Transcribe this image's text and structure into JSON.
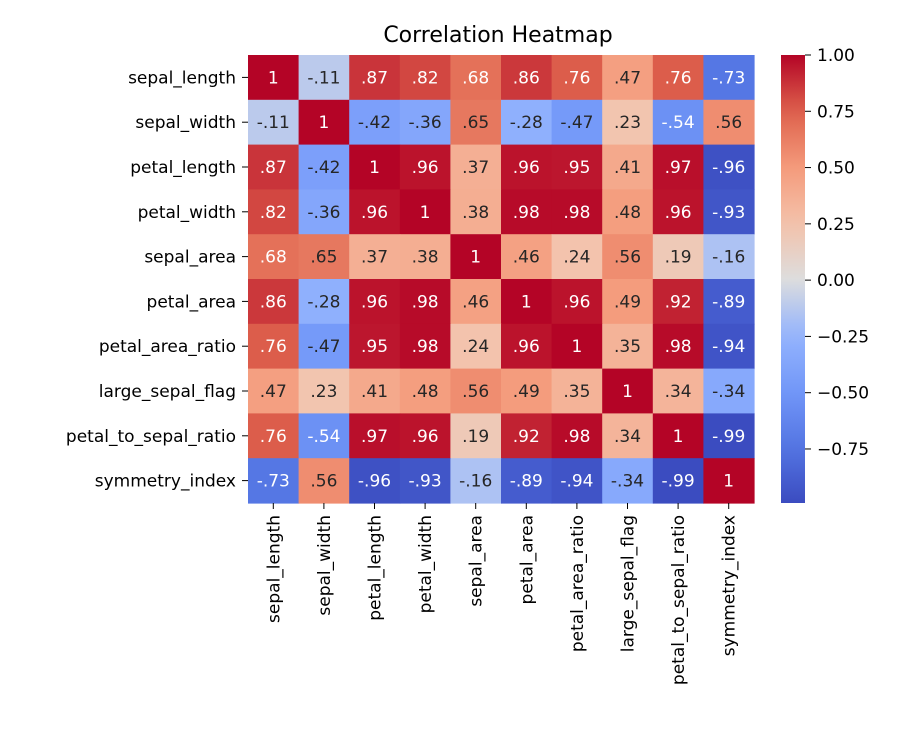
{
  "chart_data": {
    "type": "heatmap",
    "title": "Correlation Heatmap",
    "xlabel": "",
    "ylabel": "",
    "variables": [
      "sepal_length",
      "sepal_width",
      "petal_length",
      "petal_width",
      "sepal_area",
      "petal_area",
      "petal_area_ratio",
      "large_sepal_flag",
      "petal_to_sepal_ratio",
      "symmetry_index"
    ],
    "matrix": [
      [
        1,
        -0.11,
        0.87,
        0.82,
        0.68,
        0.86,
        0.76,
        0.47,
        0.76,
        -0.73
      ],
      [
        -0.11,
        1,
        -0.42,
        -0.36,
        0.65,
        -0.28,
        -0.47,
        0.23,
        -0.54,
        0.56
      ],
      [
        0.87,
        -0.42,
        1,
        0.96,
        0.37,
        0.96,
        0.95,
        0.41,
        0.97,
        -0.96
      ],
      [
        0.82,
        -0.36,
        0.96,
        1,
        0.38,
        0.98,
        0.98,
        0.48,
        0.96,
        -0.93
      ],
      [
        0.68,
        0.65,
        0.37,
        0.38,
        1,
        0.46,
        0.24,
        0.56,
        0.19,
        -0.16
      ],
      [
        0.86,
        -0.28,
        0.96,
        0.98,
        0.46,
        1,
        0.96,
        0.49,
        0.92,
        -0.89
      ],
      [
        0.76,
        -0.47,
        0.95,
        0.98,
        0.24,
        0.96,
        1,
        0.35,
        0.98,
        -0.94
      ],
      [
        0.47,
        0.23,
        0.41,
        0.48,
        0.56,
        0.49,
        0.35,
        1,
        0.34,
        -0.34
      ],
      [
        0.76,
        -0.54,
        0.97,
        0.96,
        0.19,
        0.92,
        0.98,
        0.34,
        1,
        -0.99
      ],
      [
        -0.73,
        0.56,
        -0.96,
        -0.93,
        -0.16,
        -0.89,
        -0.94,
        -0.34,
        -0.99,
        1
      ]
    ],
    "colormap": "coolwarm",
    "vmin": -0.99,
    "vmax": 1.0,
    "colorbar": {
      "ticks": [
        1.0,
        0.75,
        0.5,
        0.25,
        0.0,
        -0.25,
        -0.5,
        -0.75
      ],
      "tick_labels": [
        "1.00",
        "0.75",
        "0.50",
        "0.25",
        "0.00",
        "−0.25",
        "−0.50",
        "−0.75"
      ]
    },
    "annotations": true,
    "grid": false
  }
}
